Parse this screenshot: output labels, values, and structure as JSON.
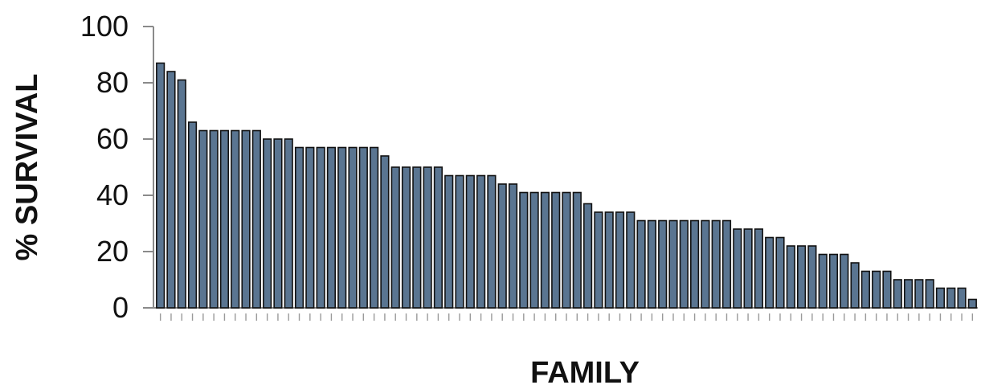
{
  "chart_data": {
    "type": "bar",
    "xlabel": "FAMILY",
    "ylabel": "% SURVIVAL",
    "ylim": [
      0,
      100
    ],
    "yticks": [
      "0",
      "20",
      "40",
      "60",
      "80",
      "100"
    ],
    "grid": false,
    "legend": "none",
    "bar_colors": [
      "#5a7591",
      "#111111"
    ],
    "values": [
      87,
      84,
      81,
      66,
      63,
      63,
      63,
      63,
      63,
      63,
      60,
      60,
      60,
      57,
      57,
      57,
      57,
      57,
      57,
      57,
      57,
      54,
      50,
      50,
      50,
      50,
      50,
      47,
      47,
      47,
      47,
      47,
      44,
      44,
      41,
      41,
      41,
      41,
      41,
      41,
      37,
      34,
      34,
      34,
      34,
      31,
      31,
      31,
      31,
      31,
      31,
      31,
      31,
      31,
      28,
      28,
      28,
      25,
      25,
      22,
      22,
      22,
      19,
      19,
      19,
      16,
      13,
      13,
      13,
      10,
      10,
      10,
      10,
      7,
      7,
      7,
      3
    ]
  }
}
